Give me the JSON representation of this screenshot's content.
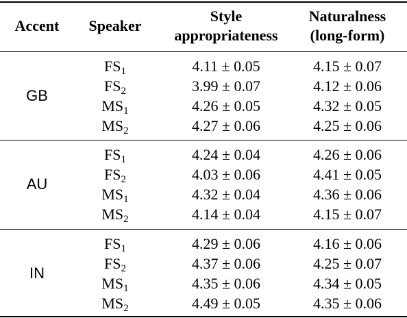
{
  "table": {
    "headers": {
      "accent": "Accent",
      "speaker": "Speaker",
      "style_line1": "Style",
      "style_line2": "appropriateness",
      "nat_line1": "Naturalness",
      "nat_line2": "(long-form)"
    },
    "groups": [
      {
        "accent": "GB",
        "rows": [
          {
            "sp": "FS",
            "sub": "1",
            "style": "4.11 ± 0.05",
            "nat": "4.15 ± 0.07"
          },
          {
            "sp": "FS",
            "sub": "2",
            "style": "3.99 ± 0.07",
            "nat": "4.12 ± 0.06"
          },
          {
            "sp": "MS",
            "sub": "1",
            "style": "4.26 ± 0.05",
            "nat": "4.32 ± 0.05"
          },
          {
            "sp": "MS",
            "sub": "2",
            "style": "4.27 ± 0.06",
            "nat": "4.25 ± 0.06"
          }
        ]
      },
      {
        "accent": "AU",
        "rows": [
          {
            "sp": "FS",
            "sub": "1",
            "style": "4.24 ± 0.04",
            "nat": "4.26 ± 0.06"
          },
          {
            "sp": "FS",
            "sub": "2",
            "style": "4.03 ± 0.06",
            "nat": "4.41 ± 0.05"
          },
          {
            "sp": "MS",
            "sub": "1",
            "style": "4.32 ± 0.04",
            "nat": "4.36 ± 0.06"
          },
          {
            "sp": "MS",
            "sub": "2",
            "style": "4.14 ± 0.04",
            "nat": "4.15 ± 0.07"
          }
        ]
      },
      {
        "accent": "IN",
        "rows": [
          {
            "sp": "FS",
            "sub": "1",
            "style": "4.29 ± 0.06",
            "nat": "4.16 ± 0.06"
          },
          {
            "sp": "FS",
            "sub": "2",
            "style": "4.37 ± 0.06",
            "nat": "4.25 ± 0.07"
          },
          {
            "sp": "MS",
            "sub": "1",
            "style": "4.35 ± 0.06",
            "nat": "4.34 ± 0.05"
          },
          {
            "sp": "MS",
            "sub": "2",
            "style": "4.49 ± 0.05",
            "nat": "4.35 ± 0.06"
          }
        ]
      }
    ]
  }
}
